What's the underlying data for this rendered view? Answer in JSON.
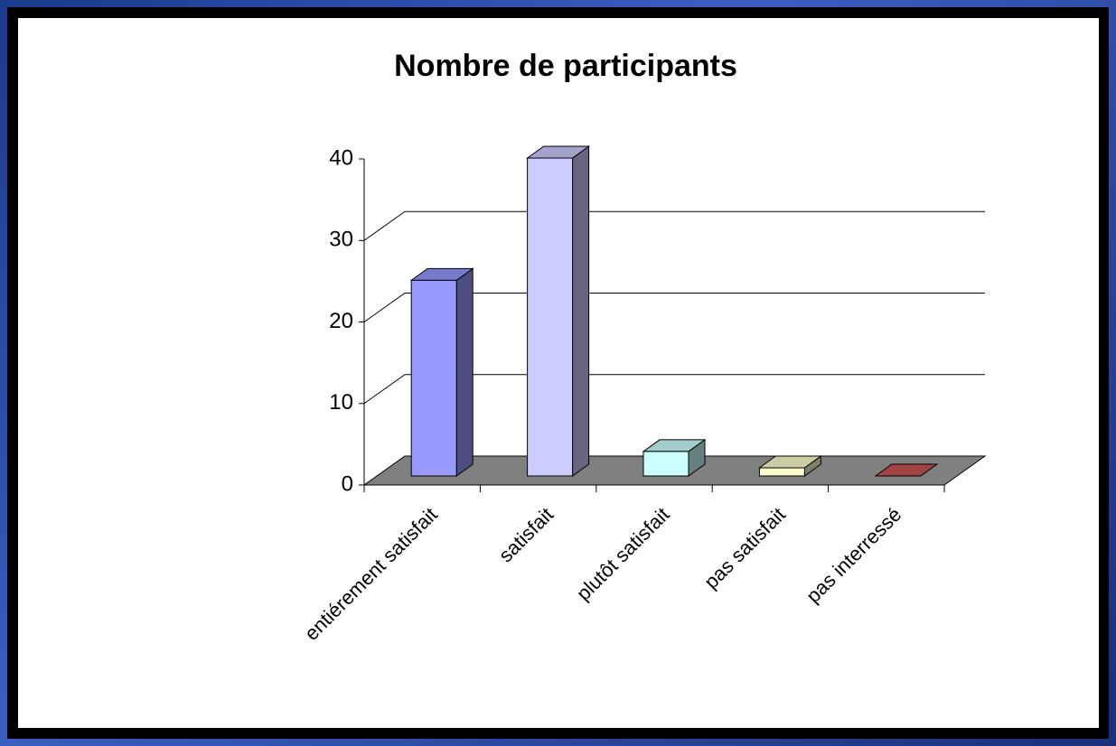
{
  "chart_data": {
    "type": "bar3d",
    "title": "Nombre de participants",
    "categories": [
      "entiérement satisfait",
      "satisfait",
      "plutôt satisfait",
      "pas satisfait",
      "pas interressé"
    ],
    "values": [
      24,
      39,
      3,
      1,
      0
    ],
    "colors": [
      "#9999ff",
      "#ccccff",
      "#ccffff",
      "#ffffcc",
      "#cc5555"
    ],
    "ylim": [
      0,
      40
    ],
    "yticks": [
      0,
      10,
      20,
      30,
      40
    ],
    "grid": true
  }
}
